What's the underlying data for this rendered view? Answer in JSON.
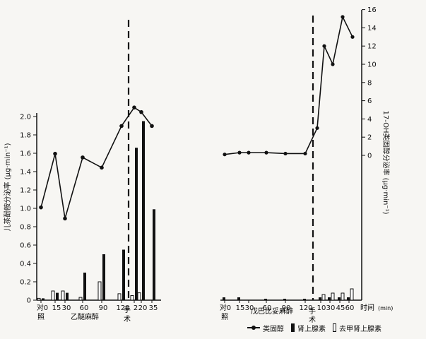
{
  "chart_data": [
    {
      "type": "bar",
      "ylabel": "儿茶酚胺分泌率 (μg·min⁻¹)",
      "ylim": [
        0,
        2.1
      ],
      "yticks": [
        "0",
        "0.2",
        "0.4",
        "0.6",
        "0.8",
        "1.0",
        "1.2",
        "1.4",
        "1.6",
        "1.8",
        "2.0"
      ],
      "categories": [
        "对照0",
        "15",
        "30",
        "60",
        "90",
        "120",
        "2",
        "20",
        "35"
      ],
      "x_tick_labels": [
        "对0",
        "15",
        "30",
        "60",
        "90",
        "120",
        "2",
        "20",
        "35"
      ],
      "x_annotations": [
        "照",
        "乙醚麻醉",
        "手",
        "术"
      ],
      "series": [
        {
          "name": "肾上腺素",
          "values": [
            0.02,
            0.08,
            0.08,
            0.3,
            0.5,
            0.55,
            1.66,
            1.95,
            0.99
          ]
        },
        {
          "name": "去甲肾上腺素",
          "values": [
            0.02,
            0.1,
            0.1,
            0.03,
            0.2,
            0.07,
            0.05,
            0.08,
            0.0
          ]
        }
      ],
      "overlay_line": {
        "name": "类固醇",
        "values": [
          3.5,
          9.3,
          2.3,
          8.9,
          7.8,
          12.3,
          14.3,
          13.8,
          12.3
        ],
        "ylim": [
          0,
          16
        ]
      },
      "surgery_marker_after_category": "120",
      "grid": false
    },
    {
      "type": "bar",
      "ylabel": "17-OH类固醇分泌率 (μg·min⁻¹)",
      "ylim": [
        0,
        16
      ],
      "yticks": [
        "0",
        "2",
        "4",
        "6",
        "8",
        "10",
        "12",
        "14",
        "16"
      ],
      "categories": [
        "对照0",
        "15",
        "30",
        "60",
        "90",
        "120",
        "10",
        "30",
        "45",
        "60"
      ],
      "x_tick_labels": [
        "对0",
        "15",
        "30",
        "60",
        "90",
        "120",
        "10",
        "30",
        "45",
        "60"
      ],
      "x_annotations": [
        "照",
        "戊巴比妥麻醉",
        "手",
        "术",
        "时间",
        "(min)"
      ],
      "series": [
        {
          "name": "肾上腺素",
          "values": [
            0.02,
            0.02,
            0.0,
            0.01,
            0.01,
            0.01,
            0.02,
            0.02,
            0.02,
            0.02
          ]
        },
        {
          "name": "去甲肾上腺素",
          "values": [
            0.0,
            0.0,
            0.0,
            0.0,
            0.0,
            0.0,
            0.04,
            0.05,
            0.05,
            0.08
          ]
        }
      ],
      "overlay_line": {
        "name": "类固醇",
        "values": [
          0.1,
          0.3,
          0.3,
          0.3,
          0.2,
          0.2,
          3.0,
          12.0,
          10.0,
          15.2,
          13.0
        ],
        "x": [
          "0",
          "15",
          "30",
          "60",
          "90",
          "120",
          "手术",
          "10",
          "30",
          "45",
          "60"
        ]
      },
      "surgery_marker_after_category": "120",
      "grid": false
    }
  ],
  "legend": {
    "line_label": "类固醇",
    "solid_label": "肾上腺素",
    "open_label": "去甲肾上腺素"
  }
}
